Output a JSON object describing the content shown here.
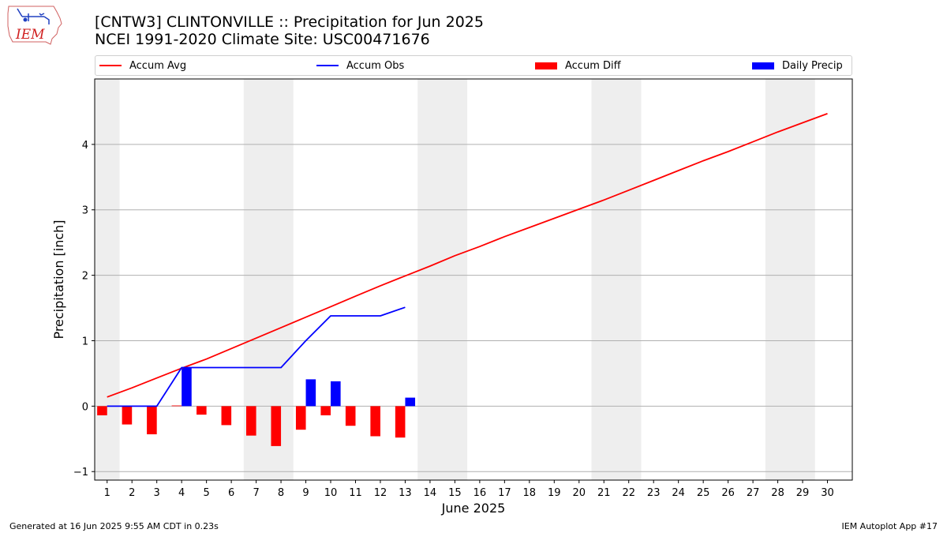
{
  "header": {
    "title_line1": "[CNTW3] CLINTONVILLE :: Precipitation for Jun 2025",
    "title_line2": "NCEI 1991-2020 Climate Site: USC00471676",
    "logo_text": "IEM"
  },
  "legend": [
    {
      "label": "Accum Avg",
      "kind": "line",
      "color": "#ff0000"
    },
    {
      "label": "Accum Obs",
      "kind": "line",
      "color": "#0000ff"
    },
    {
      "label": "Accum Diff",
      "kind": "box",
      "color": "#ff0000"
    },
    {
      "label": "Daily Precip",
      "kind": "box",
      "color": "#0000ff"
    }
  ],
  "footer": {
    "left": "Generated at 16 Jun 2025 9:55 AM CDT in 0.23s",
    "right": "IEM Autoplot App #17"
  },
  "chart_data": {
    "type": "bar",
    "xlabel": "June 2025",
    "ylabel": "Precipitation [inch]",
    "xlim": [
      0.5,
      31.0
    ],
    "ylim": [
      -1.13,
      5.0
    ],
    "yticks": [
      -1,
      0,
      1,
      2,
      3,
      4
    ],
    "days": [
      1,
      2,
      3,
      4,
      5,
      6,
      7,
      8,
      9,
      10,
      11,
      12,
      13,
      14,
      15,
      16,
      17,
      18,
      19,
      20,
      21,
      22,
      23,
      24,
      25,
      26,
      27,
      28,
      29,
      30
    ],
    "weekend_shading": [
      [
        0.5,
        1.5
      ],
      [
        6.5,
        8.5
      ],
      [
        13.5,
        15.5
      ],
      [
        20.5,
        22.5
      ],
      [
        27.5,
        29.5
      ]
    ],
    "grid": "horizontal",
    "series": [
      {
        "name": "Accum Avg",
        "type": "line",
        "color": "#ff0000",
        "x": [
          1,
          2,
          3,
          4,
          5,
          6,
          7,
          8,
          9,
          10,
          11,
          12,
          13,
          14,
          15,
          16,
          17,
          18,
          19,
          20,
          21,
          22,
          23,
          24,
          25,
          26,
          27,
          28,
          29,
          30
        ],
        "values": [
          0.14,
          0.28,
          0.43,
          0.58,
          0.72,
          0.88,
          1.04,
          1.2,
          1.36,
          1.52,
          1.68,
          1.84,
          1.99,
          2.14,
          2.3,
          2.44,
          2.59,
          2.73,
          2.87,
          3.01,
          3.15,
          3.3,
          3.45,
          3.6,
          3.75,
          3.89,
          4.04,
          4.19,
          4.33,
          4.47
        ]
      },
      {
        "name": "Accum Obs",
        "type": "line",
        "color": "#0000ff",
        "x": [
          1,
          2,
          3,
          4,
          5,
          6,
          7,
          8,
          9,
          10,
          11,
          12,
          13
        ],
        "values": [
          0,
          0,
          0,
          0.59,
          0.59,
          0.59,
          0.59,
          0.59,
          1.0,
          1.38,
          1.38,
          1.38,
          1.51
        ]
      },
      {
        "name": "Accum Diff",
        "type": "bar",
        "color": "#ff0000",
        "x": [
          1,
          2,
          3,
          4,
          5,
          6,
          7,
          8,
          9,
          10,
          11,
          12,
          13
        ],
        "values": [
          -0.14,
          -0.28,
          -0.43,
          0.01,
          -0.13,
          -0.29,
          -0.45,
          -0.61,
          -0.36,
          -0.14,
          -0.3,
          -0.46,
          -0.48
        ]
      },
      {
        "name": "Daily Precip",
        "type": "bar",
        "color": "#0000ff",
        "x": [
          1,
          2,
          3,
          4,
          5,
          6,
          7,
          8,
          9,
          10,
          11,
          12,
          13
        ],
        "values": [
          0,
          0,
          0,
          0.59,
          0,
          0,
          0,
          0,
          0.41,
          0.38,
          0,
          0,
          0.13
        ]
      }
    ]
  }
}
